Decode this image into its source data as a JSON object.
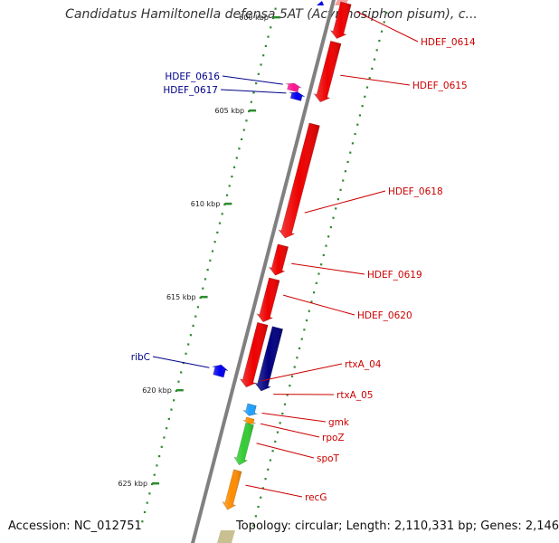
{
  "title": "Candidatus Hamiltonella defensa 5AT (Acyrthosiphon pisum), c...",
  "footer": {
    "accession": "Accession: NC_012751",
    "topology": "Topology: circular; Length: 2,110,331 bp; Genes: 2,146"
  },
  "ticks": [
    {
      "label": "600 kbp",
      "pos": 600
    },
    {
      "label": "605 kbp",
      "pos": 605
    },
    {
      "label": "610 kbp",
      "pos": 610
    },
    {
      "label": "615 kbp",
      "pos": 615
    },
    {
      "label": "620 kbp",
      "pos": 620
    },
    {
      "label": "625 kbp",
      "pos": 625
    }
  ],
  "colors": {
    "backbone": "#808080",
    "tick": "#2e8b2e",
    "forward_label": "#cc0000",
    "reverse_label": "#00008b"
  },
  "genes": [
    {
      "name": "HDEF_0614",
      "start": 598.3,
      "end": 600.2,
      "strand": "+",
      "color": "#ee0000",
      "label_color": "#cc0000"
    },
    {
      "name": "HDEF_0615",
      "start": 600.4,
      "end": 603.6,
      "strand": "+",
      "color": "#ee0000",
      "label_color": "#cc0000"
    },
    {
      "name": "HDEF_0616",
      "start": 603.0,
      "end": 603.4,
      "strand": "-",
      "color": "#ff1493",
      "label_color": "#00008b"
    },
    {
      "name": "HDEF_0617",
      "start": 603.4,
      "end": 603.8,
      "strand": "-",
      "color": "#0000ee",
      "label_color": "#00008b"
    },
    {
      "name": "HDEF_0618",
      "start": 604.8,
      "end": 610.9,
      "strand": "+",
      "color": "#ee0000",
      "label_color": "#cc0000"
    },
    {
      "name": "HDEF_0619",
      "start": 611.3,
      "end": 612.9,
      "strand": "+",
      "color": "#ee0000",
      "label_color": "#cc0000"
    },
    {
      "name": "HDEF_0620",
      "start": 613.1,
      "end": 615.4,
      "strand": "+",
      "color": "#ee0000",
      "label_color": "#cc0000"
    },
    {
      "name": "rtxA_04",
      "start": 615.5,
      "end": 618.9,
      "strand": "+",
      "color": "#ee0000",
      "label_color": "#cc0000"
    },
    {
      "name": "rtxA_05",
      "start": 615.5,
      "end": 618.9,
      "strand": "+",
      "color": "#000080",
      "label_color": "#cc0000"
    },
    {
      "name": "ribC",
      "start": 618.1,
      "end": 618.7,
      "strand": "-",
      "color": "#0000ee",
      "label_color": "#00008b"
    },
    {
      "name": "gmk",
      "start": 619.7,
      "end": 620.3,
      "strand": "+",
      "color": "#1ea0ff",
      "label_color": "#cc0000"
    },
    {
      "name": "rpoZ",
      "start": 620.4,
      "end": 620.7,
      "strand": "+",
      "color": "#ff8c00",
      "label_color": "#cc0000"
    },
    {
      "name": "spoT",
      "start": 620.7,
      "end": 622.9,
      "strand": "+",
      "color": "#33cc33",
      "label_color": "#cc0000"
    },
    {
      "name": "recG",
      "start": 623.2,
      "end": 625.3,
      "strand": "+",
      "color": "#ff8c00",
      "label_color": "#cc0000"
    }
  ]
}
